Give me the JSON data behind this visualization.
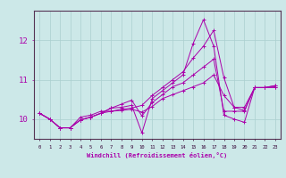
{
  "xlabel": "Windchill (Refroidissement éolien,°C)",
  "background_color": "#cce8e8",
  "grid_color": "#aacfcf",
  "line_color": "#aa00aa",
  "series": [
    [
      10.15,
      10.0,
      9.78,
      9.78,
      10.05,
      10.1,
      10.2,
      10.2,
      10.25,
      10.28,
      10.35,
      10.6,
      10.8,
      11.0,
      11.2,
      11.55,
      11.85,
      12.25,
      11.05,
      10.3,
      10.3,
      10.8,
      10.8,
      10.85
    ],
    [
      10.15,
      10.0,
      9.78,
      9.78,
      9.98,
      10.05,
      10.15,
      10.28,
      10.3,
      10.35,
      9.65,
      10.52,
      10.72,
      10.92,
      11.12,
      11.92,
      12.52,
      11.85,
      10.1,
      10.0,
      9.92,
      10.8,
      10.8,
      10.8
    ],
    [
      10.15,
      10.0,
      9.78,
      9.78,
      9.98,
      10.05,
      10.15,
      10.2,
      10.22,
      10.25,
      10.18,
      10.32,
      10.52,
      10.62,
      10.72,
      10.82,
      10.92,
      11.12,
      10.6,
      10.3,
      10.22,
      10.8,
      10.8,
      10.85
    ],
    [
      10.15,
      10.0,
      9.78,
      9.78,
      9.98,
      10.05,
      10.15,
      10.28,
      10.38,
      10.48,
      10.08,
      10.42,
      10.62,
      10.82,
      10.92,
      11.12,
      11.32,
      11.52,
      10.2,
      10.2,
      10.2,
      10.8,
      10.8,
      10.82
    ]
  ],
  "ylim": [
    9.5,
    12.75
  ],
  "yticks": [
    10,
    11,
    12
  ],
  "xlim": [
    -0.5,
    23.5
  ],
  "xticks": [
    0,
    1,
    2,
    3,
    4,
    5,
    6,
    7,
    8,
    9,
    10,
    11,
    12,
    13,
    14,
    15,
    16,
    17,
    18,
    19,
    20,
    21,
    22,
    23
  ]
}
